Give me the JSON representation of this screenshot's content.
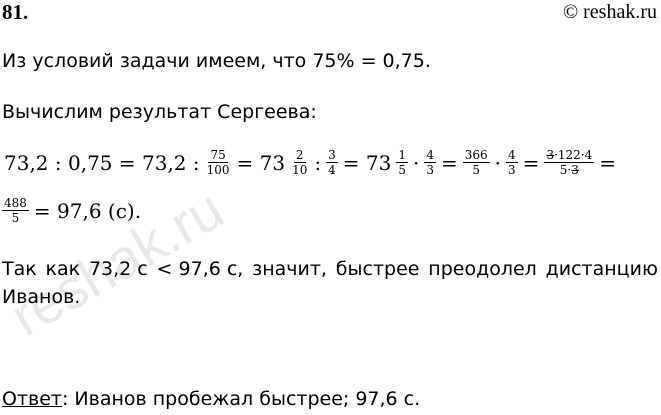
{
  "header": {
    "number": "81.",
    "copyright": "© reshak.ru"
  },
  "lines": {
    "l1": "Из условий задачи имеем, что 75% = 0,75.",
    "l2": "Вычислим результат Сергеева:",
    "l3_words": [
      "Так",
      "как",
      "73,2 с",
      "< 97,6 с,",
      "значит,",
      "быстрее",
      "преодолел",
      "дистанцию"
    ],
    "l4": "Иванов.",
    "answer_label": "Ответ",
    "answer_text": ": Иванов пробежал быстрее; 97,6 с."
  },
  "equation": {
    "t1": "73,2 : 0,75 = 73,2 :",
    "f1": [
      "75",
      "100"
    ],
    "t2": "= 73",
    "f2": [
      "2",
      "10"
    ],
    "t3": ":",
    "f3": [
      "3",
      "4"
    ],
    "t4": "= 73",
    "f4": [
      "1",
      "5"
    ],
    "t5": "·",
    "f5": [
      "4",
      "3"
    ],
    "t6": "=",
    "f6": [
      "366",
      "5"
    ],
    "t7": "·",
    "f7": [
      "4",
      "3"
    ],
    "t8": "=",
    "f8_num": [
      "3",
      "·122·4"
    ],
    "f8_den": [
      "5·",
      "3"
    ],
    "t9": "=",
    "f9": [
      "488",
      "5"
    ],
    "t10": "= 97,6 (с)."
  },
  "watermark": "reshak.ru"
}
